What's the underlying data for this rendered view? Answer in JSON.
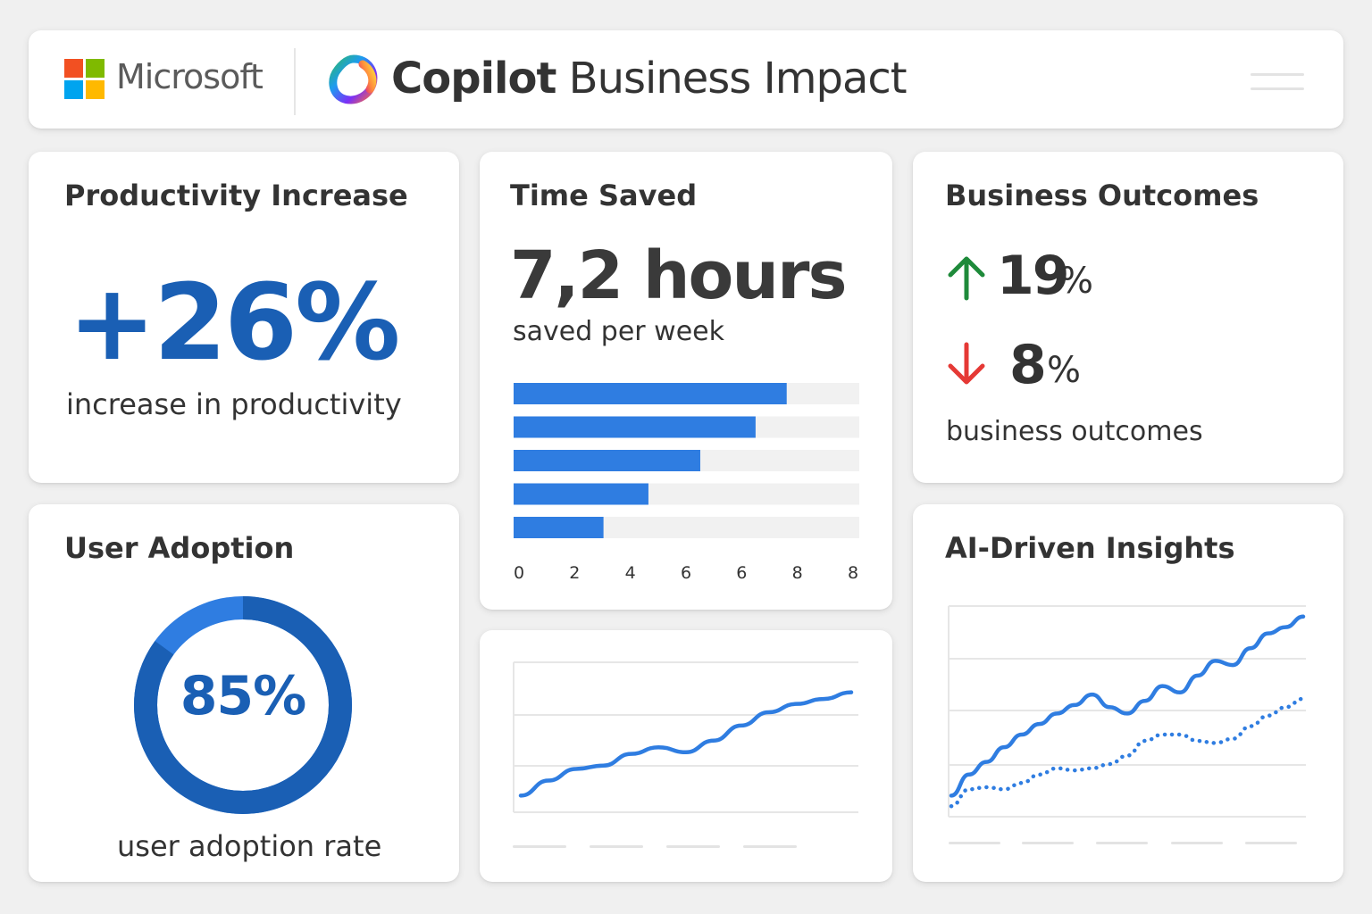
{
  "header": {
    "brand": "Microsoft",
    "app_title_bold": "Copilot",
    "app_title_rest": " Business Impact",
    "icons": [
      "microsoft-logo",
      "copilot-icon",
      "menu-icon"
    ]
  },
  "productivity": {
    "title": "Productivity Increase",
    "value": "+26%",
    "caption": "increase in productivity"
  },
  "time_saved": {
    "title": "Time Saved",
    "value": "7,2 hours",
    "caption": "saved per week",
    "chart_data": {
      "type": "bar",
      "orientation": "horizontal",
      "categories": [
        "",
        "",
        "",
        "",
        ""
      ],
      "values": [
        7.9,
        7.0,
        5.4,
        3.9,
        2.6
      ],
      "x_tick_labels": [
        "0",
        "2",
        "4",
        "6",
        "6",
        "8",
        "8"
      ],
      "xlim": [
        0,
        10
      ],
      "color": "#2f7de1",
      "track_color": "#f1f1f1"
    }
  },
  "outcomes": {
    "title": "Business Outcomes",
    "up_value": "19",
    "up_unit": "%",
    "down_value": "8",
    "down_unit": "%",
    "caption": "business outcomes",
    "up_color": "#1e8a3a",
    "down_color": "#e53935"
  },
  "adoption": {
    "title": "User Adoption",
    "value": "85%",
    "percent": 85,
    "caption": "user adoption rate",
    "ring_color": "#1a5fb4",
    "ring_light": "#2f7de1"
  },
  "trend": {
    "chart_data": {
      "type": "line",
      "x": [
        0,
        1,
        2,
        3,
        4,
        5,
        6,
        7,
        8,
        9,
        10,
        11,
        12
      ],
      "series": [
        {
          "values": [
            1.0,
            1.9,
            2.6,
            2.8,
            3.5,
            3.9,
            3.6,
            4.3,
            5.2,
            6.0,
            6.5,
            6.8,
            7.2
          ]
        }
      ],
      "ylim": [
        0,
        9
      ],
      "grid": true,
      "color": "#2f7de1"
    }
  },
  "insights": {
    "title": "AI-Driven Insights",
    "chart_data": {
      "type": "line",
      "x": [
        0,
        1,
        2,
        3,
        4,
        5,
        6,
        7,
        8,
        9,
        10,
        11,
        12,
        13,
        14,
        15,
        16,
        17,
        18,
        19,
        20
      ],
      "series": [
        {
          "style": "solid",
          "values": [
            1.0,
            2.0,
            2.6,
            3.3,
            3.9,
            4.4,
            4.9,
            5.3,
            5.8,
            5.2,
            4.9,
            5.5,
            6.2,
            5.9,
            6.7,
            7.4,
            7.2,
            8.0,
            8.7,
            9.0,
            9.5
          ]
        },
        {
          "style": "dotted",
          "values": [
            0.5,
            1.3,
            1.4,
            1.3,
            1.6,
            2.0,
            2.3,
            2.2,
            2.3,
            2.5,
            2.9,
            3.6,
            3.9,
            3.9,
            3.6,
            3.5,
            3.7,
            4.3,
            4.8,
            5.2,
            5.6
          ]
        }
      ],
      "ylim": [
        0,
        10
      ],
      "grid": true,
      "color": "#2f7de1"
    }
  }
}
